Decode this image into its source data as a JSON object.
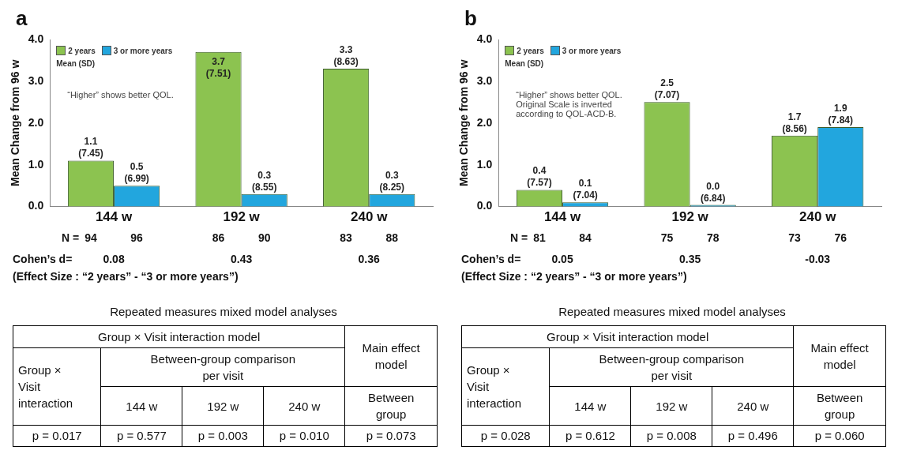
{
  "chart_data": [
    {
      "type": "bar",
      "title": "a",
      "ylabel": "Mean Change from 96 w",
      "categories": [
        "144 w",
        "192 w",
        "240 w"
      ],
      "series": [
        {
          "name": "2 years",
          "color": "#8cc350",
          "values": [
            1.1,
            3.7,
            3.3
          ],
          "value_labels": [
            "1.1\n(7.45)",
            "3.7\n(7.51)",
            "3.3\n(8.63)"
          ]
        },
        {
          "name": "3 or more years",
          "color": "#22a6de",
          "values": [
            0.5,
            0.3,
            0.3
          ],
          "value_labels": [
            "0.5\n(6.99)",
            "0.3\n(8.55)",
            "0.3\n(8.25)"
          ]
        }
      ],
      "ylim": [
        0,
        4
      ],
      "yticks": [
        {
          "value": 0,
          "label": "0.0"
        },
        {
          "value": 1,
          "label": "1.0"
        },
        {
          "value": 2,
          "label": "2.0"
        },
        {
          "value": 3,
          "label": "3.0"
        },
        {
          "value": 4,
          "label": "4.0"
        }
      ],
      "grid": false,
      "legend": "top left",
      "legend_title": "Mean (SD)",
      "annotations": [
        "“Higher” shows better QOL.",
        "N =",
        "94",
        "96",
        "86",
        "90",
        "83",
        "88",
        "Cohen’s d=",
        "0.08",
        "0.43",
        "0.36",
        "(Effect Size : “2 years” - “3 or more years”)",
        "Repeated measures mixed model analyses",
        "Group × Visit interaction model",
        "Main effect\nmodel",
        "Group ×\nVisit\ninteraction",
        "Between-group comparison\nper visit",
        "144 w",
        "192 w",
        "240 w",
        "Between\ngroup",
        "p = 0.017",
        "p = 0.577",
        "p = 0.003",
        "p = 0.010",
        "p = 0.073"
      ]
    },
    {
      "type": "bar",
      "title": "b",
      "ylabel": "Mean Change from 96 w",
      "categories": [
        "144 w",
        "192 w",
        "240 w"
      ],
      "series": [
        {
          "name": "2 years",
          "color": "#8cc350",
          "values": [
            0.4,
            2.5,
            1.7
          ],
          "value_labels": [
            "0.4\n(7.57)",
            "2.5\n(7.07)",
            "1.7\n(8.56)"
          ]
        },
        {
          "name": "3 or more years",
          "color": "#22a6de",
          "values": [
            0.1,
            0.0,
            1.9
          ],
          "value_labels": [
            "0.1\n(7.04)",
            "0.0\n(6.84)",
            "1.9\n(7.84)"
          ]
        }
      ],
      "ylim": [
        0,
        4
      ],
      "yticks": [
        {
          "value": 0,
          "label": "0.0"
        },
        {
          "value": 1,
          "label": "1.0"
        },
        {
          "value": 2,
          "label": "2.0"
        },
        {
          "value": 3,
          "label": "3.0"
        },
        {
          "value": 4,
          "label": "4.0"
        }
      ],
      "grid": false,
      "legend": "top left",
      "legend_title": "Mean (SD)",
      "annotations": [
        "“Higher” shows better QOL.\nOriginal Scale is inverted\naccording to QOL-ACD-B.",
        "N =",
        "81",
        "84",
        "75",
        "78",
        "73",
        "76",
        "Cohen’s d=",
        "0.05",
        "0.35",
        "-0.03",
        "(Effect Size : “2 years” - “3 or more years”)",
        "Repeated measures mixed model analyses",
        "Group × Visit interaction model",
        "Main effect\nmodel",
        "Group ×\nVisit\ninteraction",
        "Between-group comparison\nper visit",
        "144 w",
        "192 w",
        "240 w",
        "Between\ngroup",
        "p = 0.028",
        "p = 0.612",
        "p = 0.008",
        "p = 0.496",
        "p = 0.060"
      ]
    }
  ]
}
